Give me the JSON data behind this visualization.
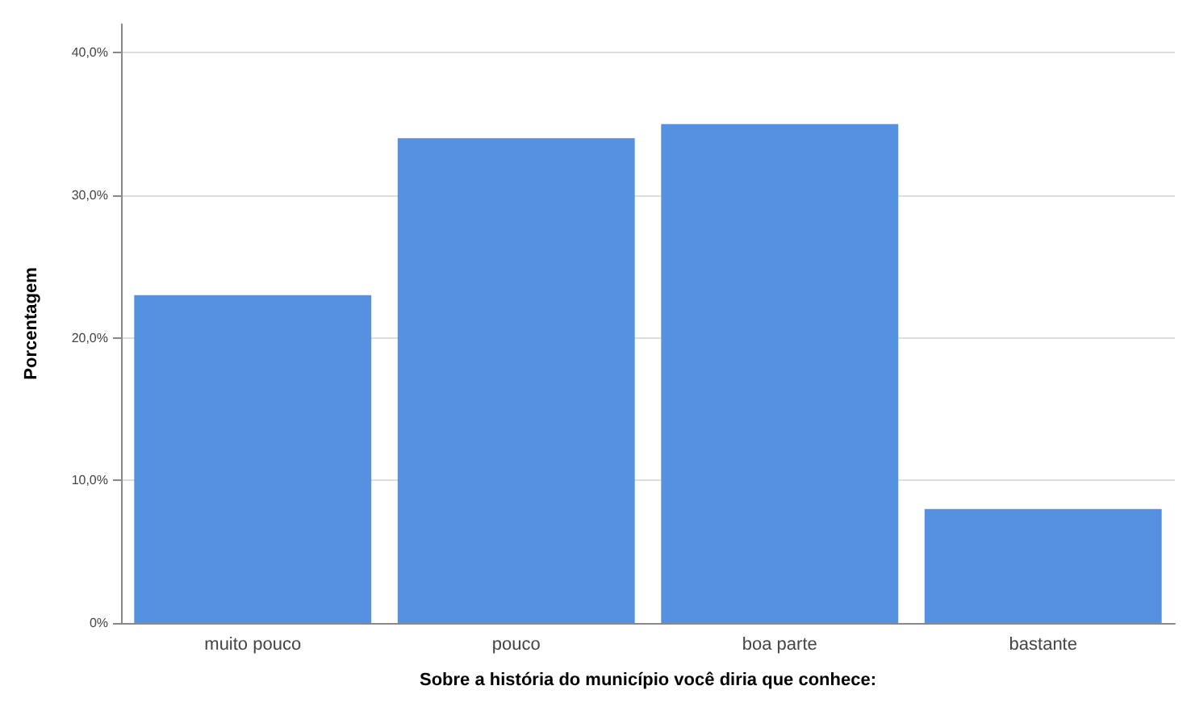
{
  "chart_data": {
    "type": "bar",
    "xlabel": "Sobre a história do município você diria que conhece:",
    "ylabel": "Porcentagem",
    "categories": [
      "muito pouco",
      "pouco",
      "boa parte",
      "bastante"
    ],
    "series": [
      {
        "color": "#5591e0",
        "values": [
          23,
          34,
          35,
          8
        ]
      }
    ],
    "ylim": [
      0,
      42
    ],
    "yticks": [
      {
        "value": 0,
        "label": "0%"
      },
      {
        "value": 10,
        "label": "10,0%"
      },
      {
        "value": 20,
        "label": "20,0%"
      },
      {
        "value": 30,
        "label": "30,0%"
      },
      {
        "value": 40,
        "label": "40,0%"
      }
    ],
    "grid": "y"
  }
}
